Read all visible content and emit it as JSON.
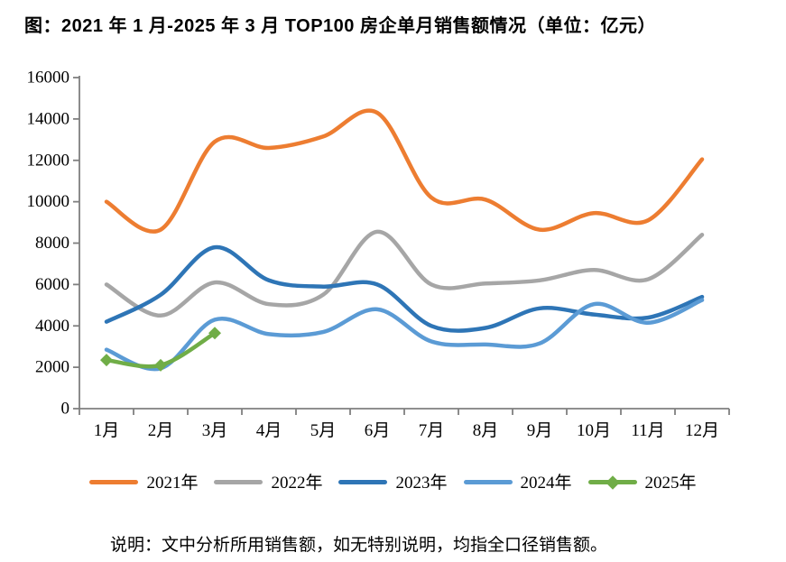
{
  "title": "图：2021 年 1 月-2025 年 3 月 TOP100 房企单月销售额情况（单位：亿元）",
  "note": "说明：文中分析所用销售额，如无特别说明，均指全口径销售额。",
  "chart_data": {
    "type": "line",
    "smooth": true,
    "grid": false,
    "legend_position": "bottom",
    "axis_color": "#7F7F7F",
    "categories": [
      "1月",
      "2月",
      "3月",
      "4月",
      "5月",
      "6月",
      "7月",
      "8月",
      "9月",
      "10月",
      "11月",
      "12月"
    ],
    "y_axis": {
      "min": 0,
      "max": 16000,
      "step": 2000,
      "tick_labels": [
        "0",
        "2000",
        "4000",
        "6000",
        "8000",
        "10000",
        "12000",
        "14000",
        "16000"
      ]
    },
    "series": [
      {
        "name": "2021年",
        "color": "#ED7D31",
        "marker": "none",
        "values": [
          10000,
          8650,
          12900,
          12600,
          13150,
          14300,
          10200,
          10100,
          8650,
          9450,
          9100,
          12050
        ]
      },
      {
        "name": "2022年",
        "color": "#A6A6A6",
        "marker": "none",
        "values": [
          6000,
          4500,
          6100,
          5050,
          5500,
          8550,
          6000,
          6050,
          6200,
          6700,
          6250,
          8400
        ]
      },
      {
        "name": "2023年",
        "color": "#2E75B6",
        "marker": "none",
        "values": [
          4200,
          5500,
          7800,
          6200,
          5900,
          6000,
          4000,
          3900,
          4850,
          4550,
          4400,
          5400
        ]
      },
      {
        "name": "2024年",
        "color": "#5B9BD5",
        "marker": "none",
        "values": [
          2850,
          1950,
          4300,
          3600,
          3700,
          4800,
          3250,
          3100,
          3150,
          5050,
          4150,
          5250
        ]
      },
      {
        "name": "2025年",
        "color": "#70AD47",
        "marker": "diamond",
        "values": [
          2350,
          2100,
          3650
        ]
      }
    ]
  }
}
